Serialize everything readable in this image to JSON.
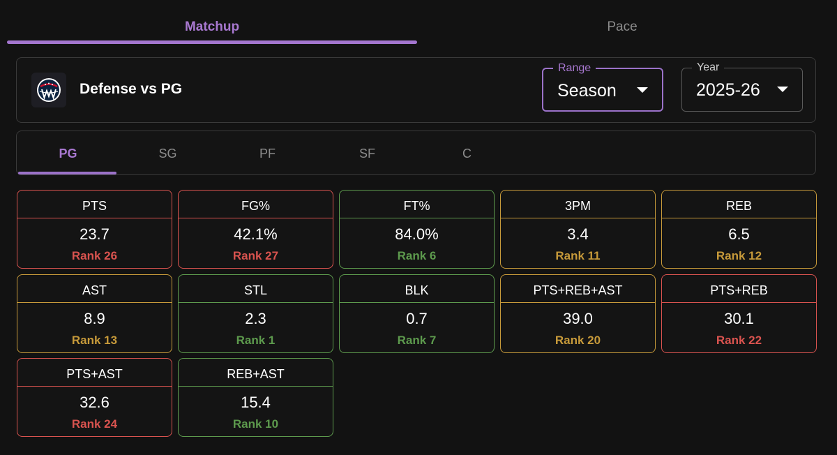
{
  "top_tabs": [
    {
      "label": "Matchup",
      "active": true
    },
    {
      "label": "Pace",
      "active": false
    }
  ],
  "header": {
    "logo_icon": "washington-wizards-logo-icon",
    "title": "Defense vs PG",
    "range": {
      "label": "Range",
      "value": "Season"
    },
    "year": {
      "label": "Year",
      "value": "2025-26"
    }
  },
  "positions": [
    {
      "label": "PG",
      "active": true
    },
    {
      "label": "SG",
      "active": false
    },
    {
      "label": "PF",
      "active": false
    },
    {
      "label": "SF",
      "active": false
    },
    {
      "label": "C",
      "active": false
    }
  ],
  "stats": [
    {
      "name": "PTS",
      "value": "23.7",
      "rank": "Rank 26",
      "tier": "red"
    },
    {
      "name": "FG%",
      "value": "42.1%",
      "rank": "Rank 27",
      "tier": "red"
    },
    {
      "name": "FT%",
      "value": "84.0%",
      "rank": "Rank 6",
      "tier": "green"
    },
    {
      "name": "3PM",
      "value": "3.4",
      "rank": "Rank 11",
      "tier": "yellow"
    },
    {
      "name": "REB",
      "value": "6.5",
      "rank": "Rank 12",
      "tier": "yellow"
    },
    {
      "name": "AST",
      "value": "8.9",
      "rank": "Rank 13",
      "tier": "yellow"
    },
    {
      "name": "STL",
      "value": "2.3",
      "rank": "Rank 1",
      "tier": "green"
    },
    {
      "name": "BLK",
      "value": "0.7",
      "rank": "Rank 7",
      "tier": "green"
    },
    {
      "name": "PTS+REB+AST",
      "value": "39.0",
      "rank": "Rank 20",
      "tier": "yellow"
    },
    {
      "name": "PTS+REB",
      "value": "30.1",
      "rank": "Rank 22",
      "tier": "red"
    },
    {
      "name": "PTS+AST",
      "value": "32.6",
      "rank": "Rank 24",
      "tier": "red"
    },
    {
      "name": "REB+AST",
      "value": "15.4",
      "rank": "Rank 10",
      "tier": "green"
    }
  ],
  "colors": {
    "accent": "#a476cf",
    "red": "#d9534f",
    "yellow": "#c79a3a",
    "green": "#5d9a4d",
    "background": "#121212"
  }
}
